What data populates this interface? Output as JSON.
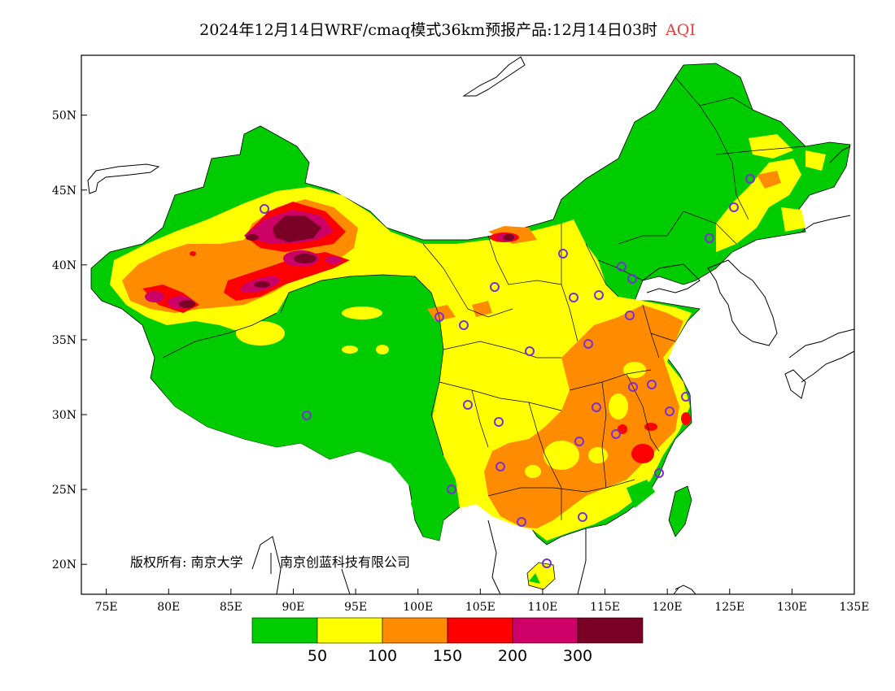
{
  "header": {
    "title": "2024年12月14日WRF/cmaq模式36km预报产品:12月14日03时",
    "variable": "AQI"
  },
  "map": {
    "lon_range": [
      73,
      135
    ],
    "lat_range": [
      18,
      54
    ],
    "x_ticks": [
      "75E",
      "80E",
      "85E",
      "90E",
      "95E",
      "100E",
      "105E",
      "110E",
      "115E",
      "120E",
      "125E",
      "130E",
      "135E"
    ],
    "y_ticks": [
      "20N",
      "25N",
      "30N",
      "35N",
      "40N",
      "45N",
      "50N"
    ],
    "copyright": "版权所有: 南京大学",
    "company": "南京创蓝科技有限公司",
    "station_marker_color": "#7a2fd6"
  },
  "legend": {
    "colors": [
      "#00cc00",
      "#ffff00",
      "#ff8c00",
      "#ff0000",
      "#cc0066",
      "#7a0026"
    ],
    "labels": [
      "50",
      "100",
      "150",
      "200",
      "300"
    ]
  }
}
